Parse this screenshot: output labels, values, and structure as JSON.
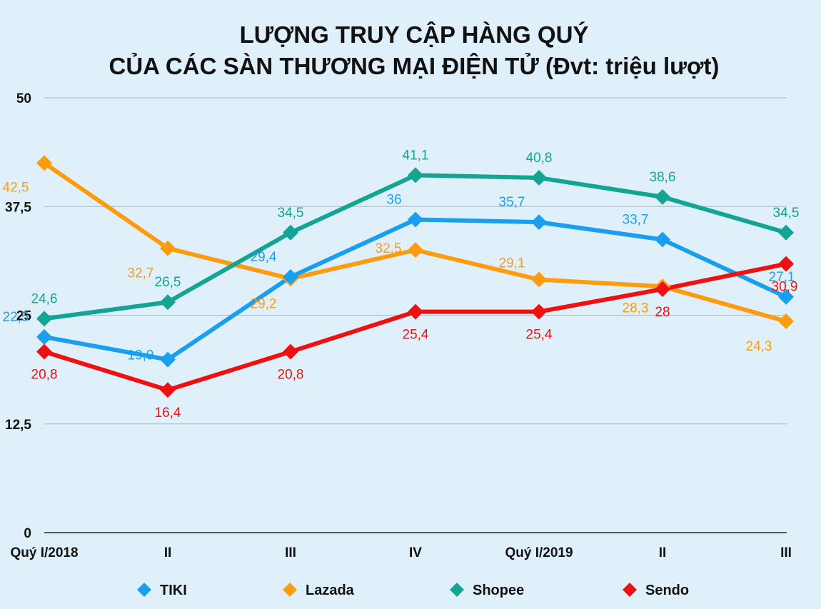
{
  "chart_data": {
    "type": "line",
    "title": "LƯỢNG TRUY CẬP HÀNG QUÝ",
    "subtitle": "CỦA CÁC SÀN THƯƠNG MẠI ĐIỆN TỬ (Đvt: triệu lượt)",
    "categories": [
      "Quý I/2018",
      "II",
      "III",
      "IV",
      "Quý I/2019",
      "II",
      "III"
    ],
    "y_ticks": [
      "0",
      "12,5",
      "25",
      "37,5",
      "50"
    ],
    "ylim": [
      0,
      50
    ],
    "grid": true,
    "legend_position": "bottom",
    "series": [
      {
        "name": "TIKI",
        "color": "#1a9ff0",
        "values": [
          22.5,
          19.9,
          29.4,
          36,
          35.7,
          33.7,
          27.1
        ],
        "labels": [
          "22,5",
          "19,9",
          "29,4",
          "36",
          "35,7",
          "33,7",
          "27,1"
        ]
      },
      {
        "name": "Lazada",
        "color": "#ff9b0e",
        "values": [
          42.5,
          32.7,
          29.2,
          32.5,
          29.1,
          28.3,
          24.3
        ],
        "labels": [
          "42,5",
          "32,7",
          "29,2",
          "32,5",
          "29,1",
          "28,3",
          "24,3"
        ]
      },
      {
        "name": "Shopee",
        "color": "#13a493",
        "values": [
          24.6,
          26.5,
          34.5,
          41.1,
          40.8,
          38.6,
          34.5
        ],
        "labels": [
          "24,6",
          "26,5",
          "34,5",
          "41,1",
          "40,8",
          "38,6",
          "34,5"
        ]
      },
      {
        "name": "Sendo",
        "color": "#ee1111",
        "values": [
          20.8,
          16.4,
          20.8,
          25.4,
          25.4,
          28,
          30.9
        ],
        "labels": [
          "20,8",
          "16,4",
          "20,8",
          "25,4",
          "25,4",
          "28",
          "30,9"
        ]
      }
    ]
  }
}
